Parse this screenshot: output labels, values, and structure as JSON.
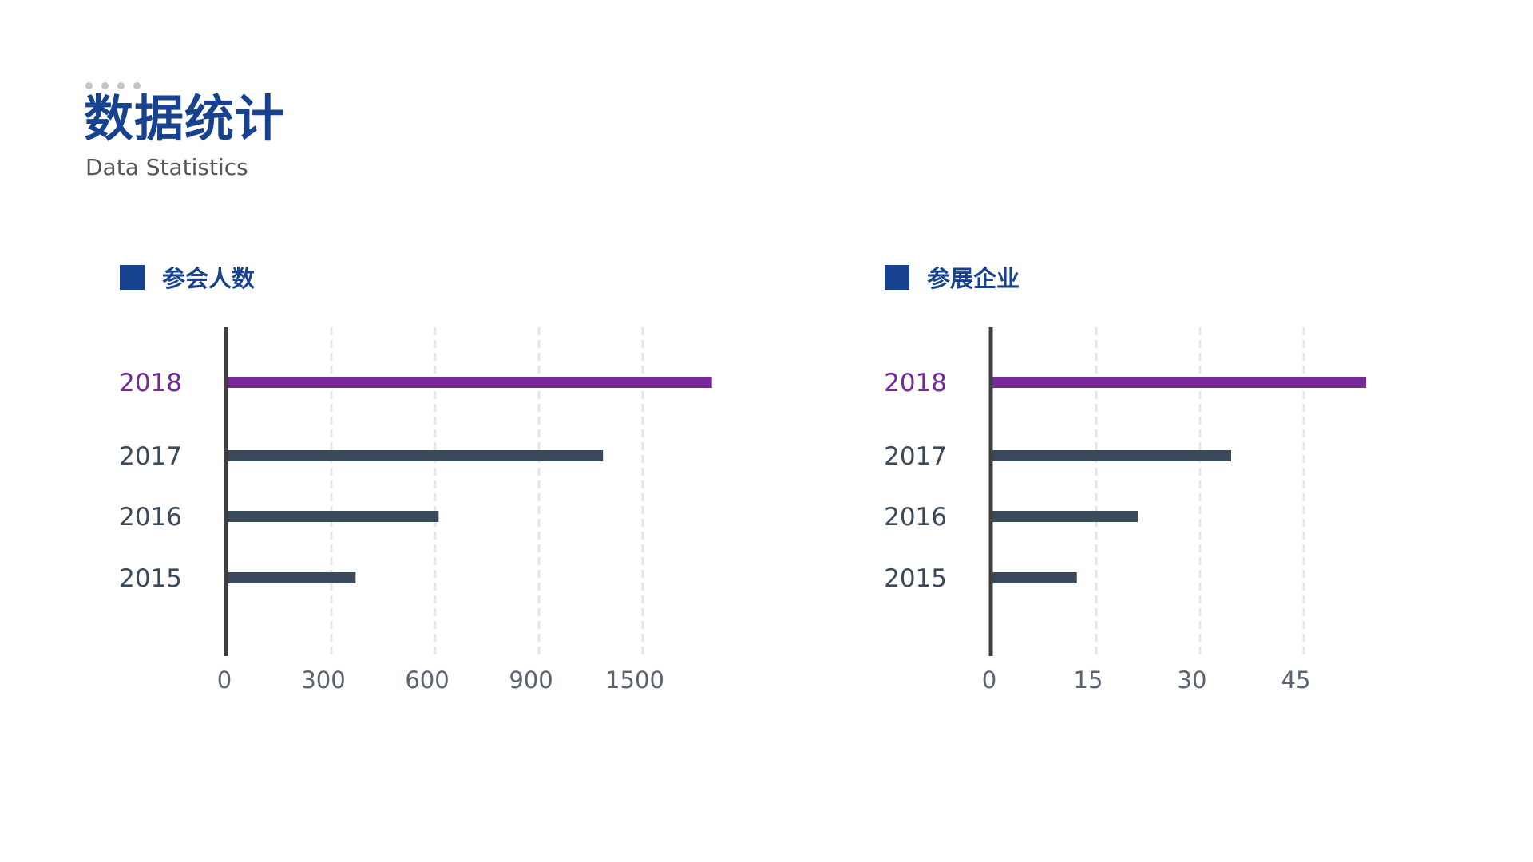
{
  "header": {
    "title": "数据统计",
    "subtitle": "Data Statistics"
  },
  "colors": {
    "title": "#17428f",
    "highlight": "#76299a",
    "bar": "#3b4a5a",
    "axis": "#3f3f3f",
    "grid": "#e6e6e6",
    "decor_dots": "#c4c4c4"
  },
  "chart_data": [
    {
      "type": "bar",
      "orientation": "horizontal",
      "title": "参会人数",
      "categories": [
        "2018",
        "2017",
        "2016",
        "2015"
      ],
      "values": [
        1900,
        1270,
        610,
        370
      ],
      "highlight_category": "2018",
      "xticks": [
        "0",
        "300",
        "600",
        "900",
        "1500"
      ],
      "grid": true
    },
    {
      "type": "bar",
      "orientation": "horizontal",
      "title": "参展企业",
      "categories": [
        "2018",
        "2017",
        "2016",
        "2015"
      ],
      "values": [
        54,
        34.5,
        21,
        12.2
      ],
      "highlight_category": "2018",
      "xticks": [
        "0",
        "15",
        "30",
        "45"
      ],
      "grid": true
    }
  ]
}
